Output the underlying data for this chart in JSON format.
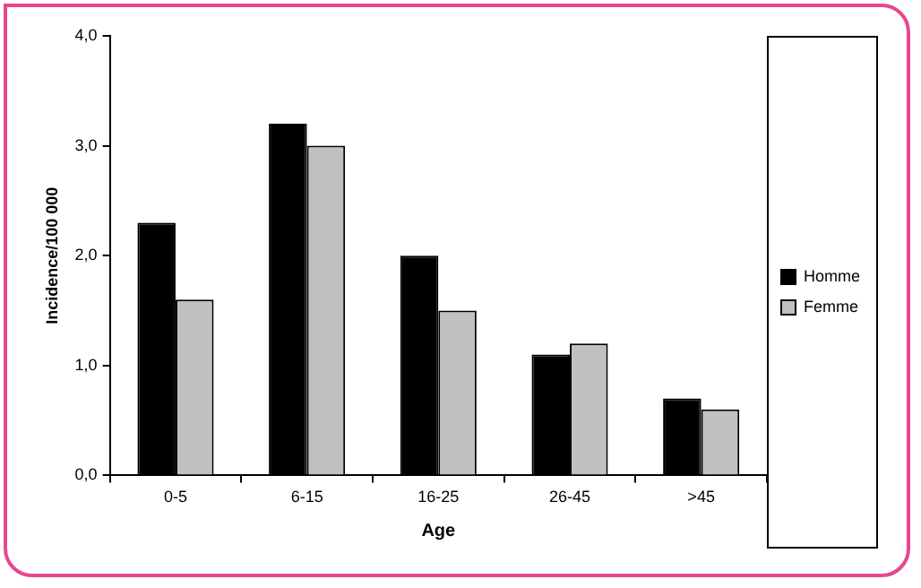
{
  "chart_data": {
    "type": "bar",
    "xlabel": "Age",
    "ylabel": "Incidence/100 000",
    "categories": [
      "0-5",
      "6-15",
      "16-25",
      "26-45",
      ">45"
    ],
    "series": [
      {
        "name": "Homme",
        "color": "#000000",
        "values": [
          2.3,
          3.2,
          2.0,
          1.1,
          0.7
        ]
      },
      {
        "name": "Femme",
        "color": "#c0c0c0",
        "values": [
          1.6,
          3.0,
          1.5,
          1.2,
          0.6
        ]
      }
    ],
    "ylim": [
      0,
      4
    ],
    "yticks": [
      {
        "value": 0,
        "label": "0,0"
      },
      {
        "value": 1,
        "label": "1,0"
      },
      {
        "value": 2,
        "label": "2,0"
      },
      {
        "value": 3,
        "label": "3,0"
      },
      {
        "value": 4,
        "label": "4,0"
      }
    ],
    "grid": false,
    "legend": "right"
  }
}
